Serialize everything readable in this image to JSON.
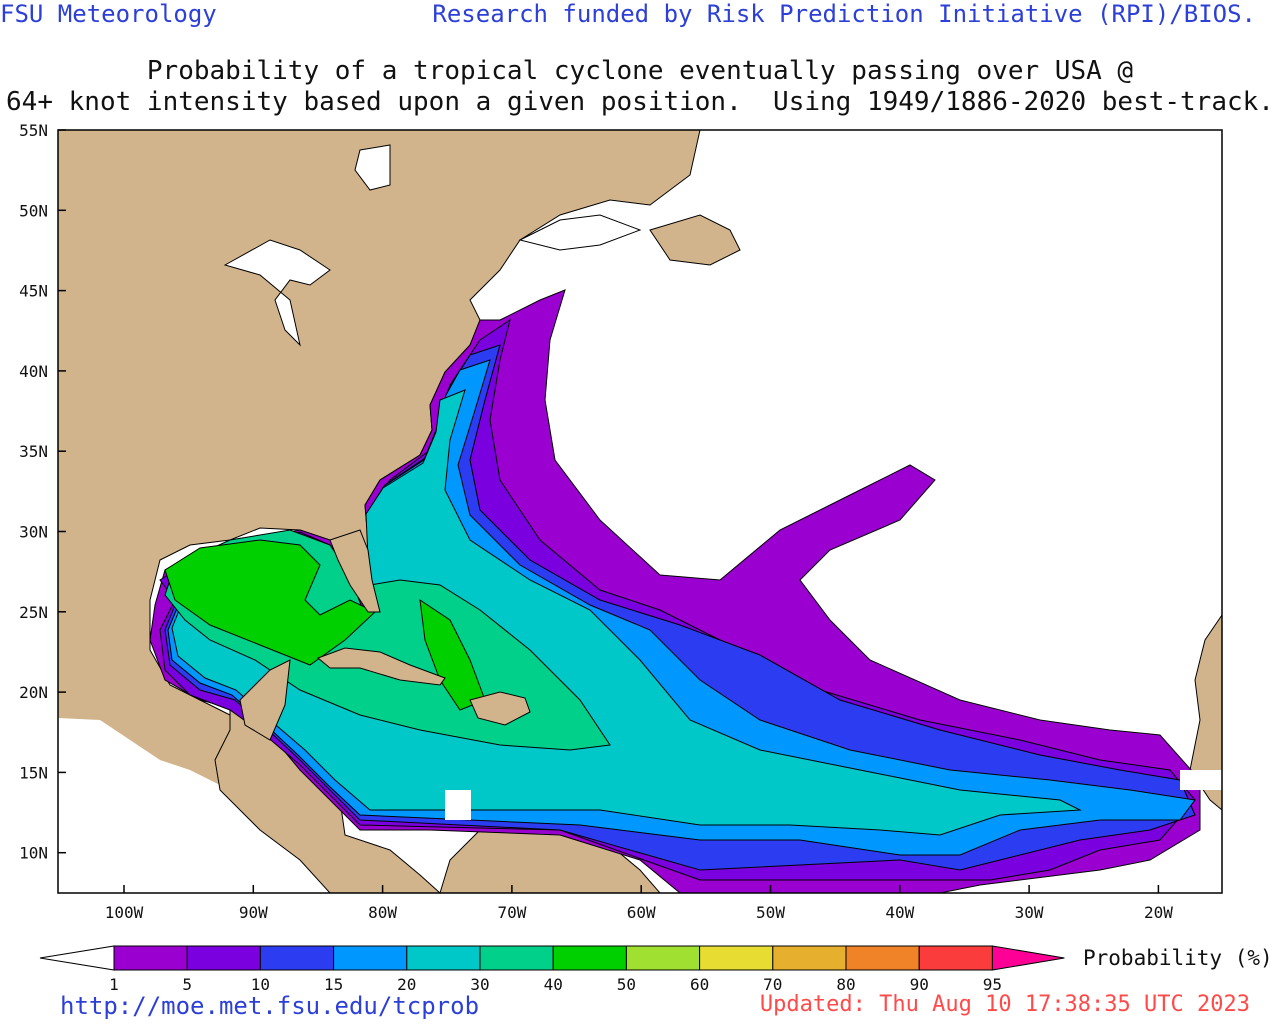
{
  "header": {
    "left": "FSU Meteorology",
    "right": "Research funded by Risk Prediction Initiative (RPI)/BIOS."
  },
  "title": {
    "line1": "Probability of a tropical cyclone eventually passing over USA @",
    "line2": "64+ knot intensity based upon a given position.  Using 1949/1886-2020 best-track."
  },
  "axes": {
    "lat_labels": [
      "55N",
      "50N",
      "45N",
      "40N",
      "35N",
      "30N",
      "25N",
      "20N",
      "15N",
      "10N"
    ],
    "lon_labels": [
      "100W",
      "90W",
      "80W",
      "70W",
      "60W",
      "50W",
      "40W",
      "30W",
      "20W"
    ]
  },
  "legend": {
    "title": "Probability (%)",
    "ticks": [
      "1",
      "5",
      "10",
      "15",
      "20",
      "30",
      "40",
      "50",
      "60",
      "70",
      "80",
      "90",
      "95"
    ],
    "colors": [
      "#ffffff",
      "#9a00d0",
      "#7a00e0",
      "#2c3cf0",
      "#0098ff",
      "#00c8c8",
      "#00d08a",
      "#00d000",
      "#a0e030",
      "#e6dc32",
      "#e6af2d",
      "#f08228",
      "#fa3c3c",
      "#ff0096"
    ]
  },
  "colors": {
    "land": "#d2b48c",
    "ocean": "#ffffff",
    "coast": "#000000"
  },
  "footer": {
    "url": "http://moe.met.fsu.edu/tcprob",
    "updated": "Updated: Thu Aug 10 17:38:35 UTC 2023"
  }
}
